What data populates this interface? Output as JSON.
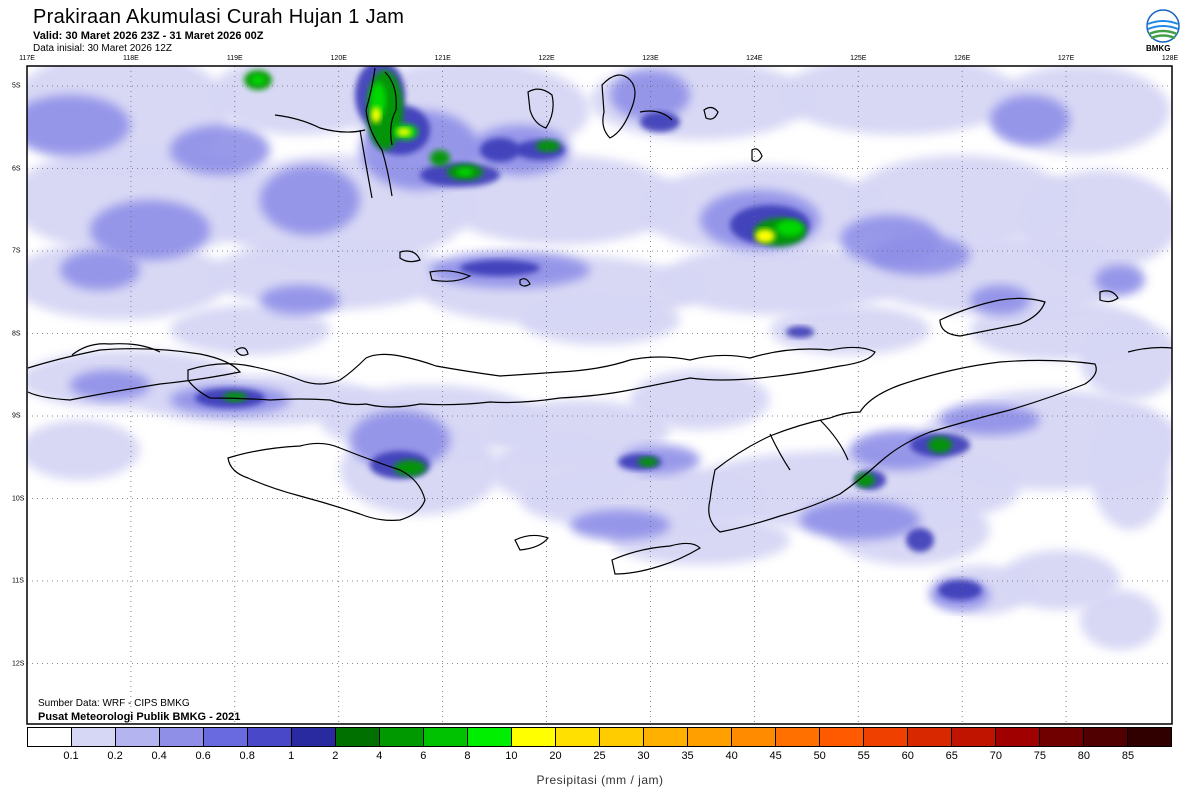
{
  "header": {
    "title": "Prakiraan Akumulasi Curah Hujan 1 Jam",
    "valid": "Valid: 30 Maret 2026 23Z - 31 Maret 2026 00Z",
    "initial": "Data inisial: 30 Maret 2026 12Z",
    "logo_text": "BMKG"
  },
  "map": {
    "lon_labels": [
      "117E",
      "118E",
      "119E",
      "120E",
      "121E",
      "122E",
      "123E",
      "124E",
      "125E",
      "126E",
      "127E",
      "128E"
    ],
    "lat_labels": [
      "5S",
      "6S",
      "7S",
      "8S",
      "9S",
      "10S",
      "11S",
      "12S"
    ],
    "credits": {
      "source": "Sumber Data: WRF - CIPS BMKG",
      "center": "Pusat Meteorologi Publik BMKG - 2021"
    }
  },
  "legend": {
    "title": "Presipitasi (mm / jam)",
    "labels": [
      "0.1",
      "0.2",
      "0.4",
      "0.6",
      "0.8",
      "1",
      "2",
      "4",
      "6",
      "8",
      "10",
      "20",
      "25",
      "30",
      "35",
      "40",
      "45",
      "50",
      "55",
      "60",
      "65",
      "70",
      "75",
      "80",
      "85"
    ],
    "colors": [
      "#ffffff",
      "#d6d6f5",
      "#b4b4f0",
      "#8f8fe8",
      "#6a6ae0",
      "#4848c8",
      "#2a2aa0",
      "#007000",
      "#009900",
      "#00c200",
      "#00ee00",
      "#ffff00",
      "#ffe000",
      "#ffcc00",
      "#ffb000",
      "#ffa000",
      "#ff8c00",
      "#ff7000",
      "#ff5a00",
      "#f04000",
      "#d82800",
      "#c01400",
      "#a00000",
      "#700000",
      "#500000",
      "#300000"
    ]
  },
  "colors": {
    "light": "#d6d6f5",
    "mid": "#8f8fe8",
    "dark": "#3a3ab8",
    "green": "#009900",
    "bright_green": "#00dd00",
    "yellow": "#ffff00"
  }
}
